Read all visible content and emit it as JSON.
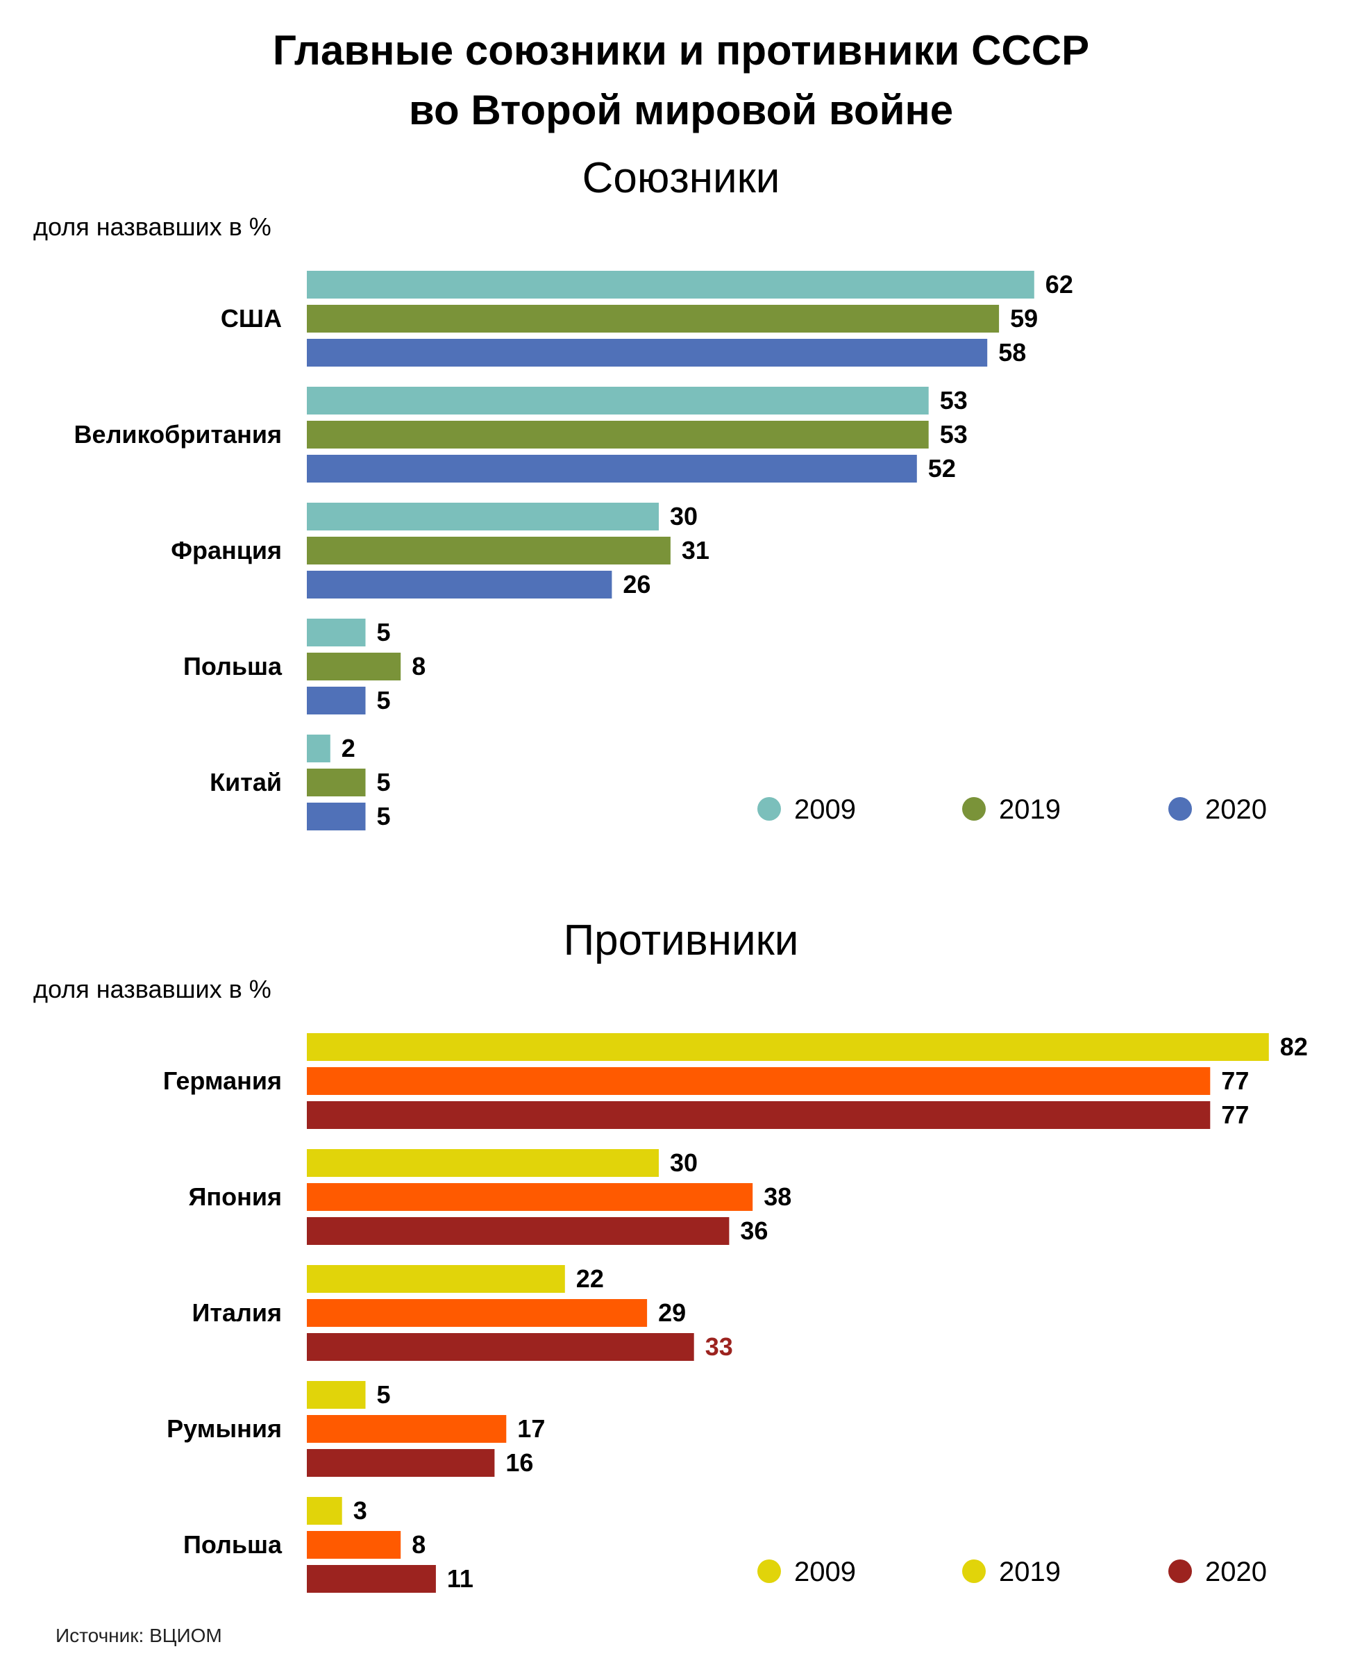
{
  "title_line1": "Главные союзники и противники СССР",
  "title_line2": "во Второй мировой войне",
  "source": "Источник: ВЦИОМ",
  "chart_data": [
    {
      "type": "bar",
      "orientation": "horizontal",
      "subtitle": "Союзники",
      "unit_label": "доля назвавших в %",
      "categories": [
        "США",
        "Великобритания",
        "Франция",
        "Польша",
        "Китай"
      ],
      "series": [
        {
          "name": "2009",
          "color": "#7bbfbb",
          "values": [
            62,
            53,
            30,
            5,
            2
          ]
        },
        {
          "name": "2019",
          "color": "#7a9339",
          "values": [
            59,
            53,
            31,
            8,
            5
          ]
        },
        {
          "name": "2020",
          "color": "#5071b8",
          "values": [
            58,
            52,
            26,
            5,
            5
          ]
        }
      ],
      "legend_position": "bottom-right",
      "grid": false
    },
    {
      "type": "bar",
      "orientation": "horizontal",
      "subtitle": "Противники",
      "unit_label": "доля назвавших в %",
      "categories": [
        "Германия",
        "Япония",
        "Италия",
        "Румыния",
        "Польша"
      ],
      "series": [
        {
          "name": "2009",
          "color": "#e1d40a",
          "values": [
            82,
            30,
            22,
            5,
            3
          ]
        },
        {
          "name": "2019",
          "color": "#ff5a00",
          "legend_color": "#e1d40a",
          "values": [
            77,
            38,
            29,
            17,
            8
          ]
        },
        {
          "name": "2020",
          "color": "#9c231f",
          "values": [
            77,
            36,
            33,
            16,
            11
          ]
        }
      ],
      "highlighted_labels": [
        {
          "category": "Италия",
          "series": "2020",
          "color": "#9c231f"
        }
      ],
      "legend_position": "bottom-right",
      "grid": false
    }
  ]
}
